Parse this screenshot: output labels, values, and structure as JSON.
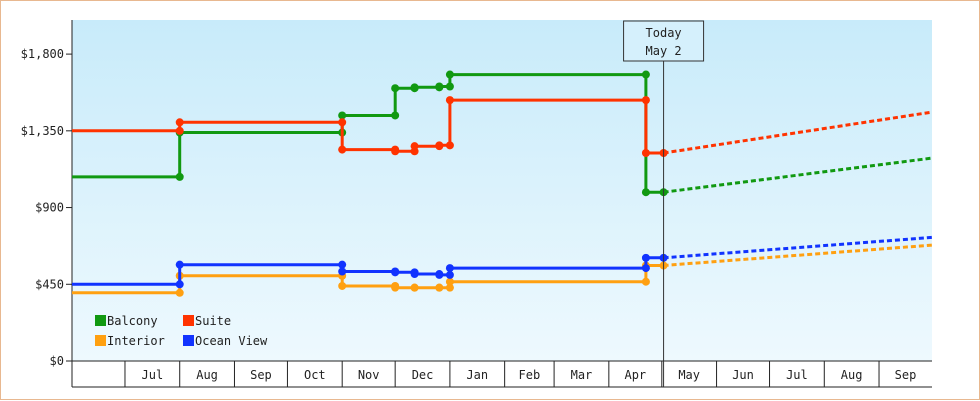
{
  "chart_data": {
    "type": "line",
    "title": "",
    "xlabel": "",
    "ylabel": "",
    "ylim": [
      0,
      2000
    ],
    "y_ticks": [
      0,
      450,
      900,
      1350,
      1800
    ],
    "y_tick_labels": [
      "$0",
      "$450",
      "$900",
      "$1,350",
      "$1,800"
    ],
    "x_range": [
      "2024-06-01",
      "2025-10-01"
    ],
    "x_ticks": [
      "2024-07-01",
      "2024-08-01",
      "2024-09-01",
      "2024-10-01",
      "2024-11-01",
      "2024-12-01",
      "2025-01-01",
      "2025-02-01",
      "2025-03-01",
      "2025-04-01",
      "2025-05-01",
      "2025-06-01",
      "2025-07-01",
      "2025-08-01",
      "2025-09-01"
    ],
    "x_tick_labels": [
      "Jul",
      "Aug",
      "Sep",
      "Oct",
      "Nov",
      "Dec",
      "Jan",
      "Feb",
      "Mar",
      "Apr",
      "May",
      "Jun",
      "Jul",
      "Aug",
      "Sep"
    ],
    "grid": false,
    "legend_position": "bottom-left",
    "today": {
      "label_line1": "Today",
      "label_line2": "May 2",
      "date": "2025-05-02"
    },
    "series": [
      {
        "name": "Balcony",
        "color": "#119911",
        "points": [
          [
            "2024-06-01",
            1080
          ],
          [
            "2024-08-01",
            1080
          ],
          [
            "2024-08-01",
            1340
          ],
          [
            "2024-11-01",
            1340
          ],
          [
            "2024-11-01",
            1440
          ],
          [
            "2024-12-01",
            1440
          ],
          [
            "2024-12-01",
            1600
          ],
          [
            "2024-12-12",
            1600
          ],
          [
            "2024-12-12",
            1605
          ],
          [
            "2024-12-26",
            1605
          ],
          [
            "2024-12-26",
            1610
          ],
          [
            "2025-01-01",
            1610
          ],
          [
            "2025-01-01",
            1680
          ],
          [
            "2025-04-22",
            1680
          ],
          [
            "2025-04-22",
            990
          ],
          [
            "2025-05-02",
            990
          ]
        ],
        "forecast": [
          [
            "2025-05-02",
            990
          ],
          [
            "2025-10-01",
            1190
          ]
        ]
      },
      {
        "name": "Suite",
        "color": "#ff3300",
        "points": [
          [
            "2024-06-01",
            1350
          ],
          [
            "2024-08-01",
            1350
          ],
          [
            "2024-08-01",
            1400
          ],
          [
            "2024-11-01",
            1400
          ],
          [
            "2024-11-01",
            1240
          ],
          [
            "2024-12-01",
            1240
          ],
          [
            "2024-12-01",
            1230
          ],
          [
            "2024-12-12",
            1230
          ],
          [
            "2024-12-12",
            1260
          ],
          [
            "2024-12-26",
            1260
          ],
          [
            "2024-12-26",
            1265
          ],
          [
            "2025-01-01",
            1265
          ],
          [
            "2025-01-01",
            1530
          ],
          [
            "2025-04-22",
            1530
          ],
          [
            "2025-04-22",
            1220
          ],
          [
            "2025-05-02",
            1220
          ]
        ],
        "forecast": [
          [
            "2025-05-02",
            1220
          ],
          [
            "2025-10-01",
            1460
          ]
        ]
      },
      {
        "name": "Interior",
        "color": "#ffa011",
        "points": [
          [
            "2024-06-01",
            400
          ],
          [
            "2024-08-01",
            400
          ],
          [
            "2024-08-01",
            500
          ],
          [
            "2024-11-01",
            500
          ],
          [
            "2024-11-01",
            440
          ],
          [
            "2024-12-01",
            440
          ],
          [
            "2024-12-01",
            430
          ],
          [
            "2024-12-12",
            430
          ],
          [
            "2024-12-12",
            430
          ],
          [
            "2024-12-26",
            430
          ],
          [
            "2024-12-26",
            430
          ],
          [
            "2025-01-01",
            430
          ],
          [
            "2025-01-01",
            465
          ],
          [
            "2025-04-22",
            465
          ],
          [
            "2025-04-22",
            560
          ],
          [
            "2025-05-02",
            560
          ]
        ],
        "forecast": [
          [
            "2025-05-02",
            560
          ],
          [
            "2025-10-01",
            680
          ]
        ]
      },
      {
        "name": "Ocean View",
        "color": "#1133ff",
        "points": [
          [
            "2024-06-01",
            450
          ],
          [
            "2024-08-01",
            450
          ],
          [
            "2024-08-01",
            565
          ],
          [
            "2024-11-01",
            565
          ],
          [
            "2024-11-01",
            525
          ],
          [
            "2024-12-01",
            525
          ],
          [
            "2024-12-01",
            520
          ],
          [
            "2024-12-12",
            520
          ],
          [
            "2024-12-12",
            510
          ],
          [
            "2024-12-26",
            510
          ],
          [
            "2024-12-26",
            505
          ],
          [
            "2025-01-01",
            505
          ],
          [
            "2025-01-01",
            545
          ],
          [
            "2025-04-22",
            545
          ],
          [
            "2025-04-22",
            605
          ],
          [
            "2025-05-02",
            605
          ]
        ],
        "forecast": [
          [
            "2025-05-02",
            605
          ],
          [
            "2025-10-01",
            725
          ]
        ]
      }
    ]
  }
}
